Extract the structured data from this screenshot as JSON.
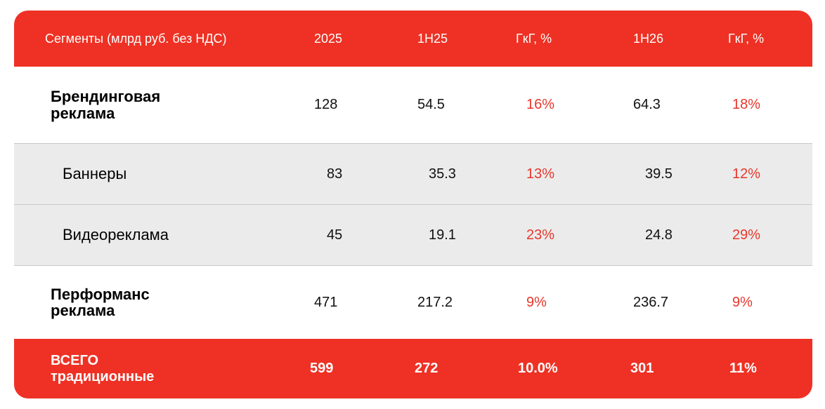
{
  "table": {
    "header": [
      "Сегменты (млрд руб. без НДС)",
      "2025",
      "1H25",
      "ГкГ, %",
      "1H26",
      "ГкГ, %"
    ],
    "rows": [
      [
        "Брендинговая реклама",
        "128",
        "54.5",
        "16%",
        "64.3",
        "18%"
      ],
      [
        "Баннеры",
        "83",
        "35.3",
        "13%",
        "39.5",
        "12%"
      ],
      [
        "Видеореклама",
        "45",
        "19.1",
        "23%",
        "24.8",
        "29%"
      ],
      [
        "Перформанс реклама",
        "471",
        "217.2",
        "9%",
        "236.7",
        "9%"
      ],
      [
        "ВСЕГО традиционные",
        "599",
        "272",
        "10.0%",
        "301",
        "11%"
      ]
    ]
  }
}
